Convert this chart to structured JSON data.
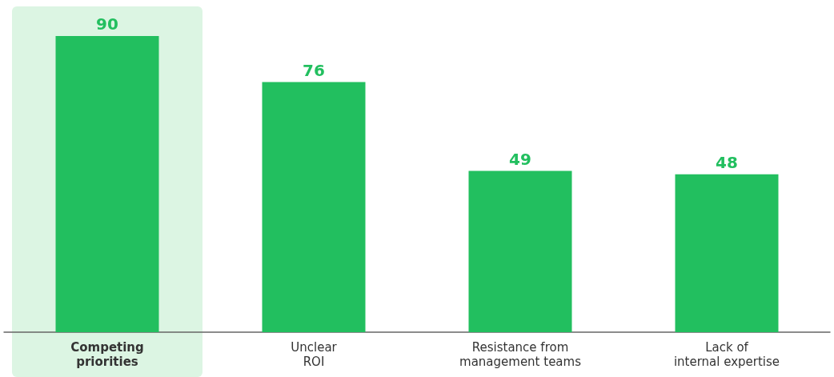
{
  "chart_data": {
    "type": "bar",
    "categories": [
      "Competing\npriorities",
      "Unclear\nROI",
      "Resistance from\nmanagement teams",
      "Lack of\ninternal expertise"
    ],
    "values": [
      90,
      76,
      49,
      48
    ],
    "color": "#22bf5f",
    "data_labels": true,
    "bands": [
      {
        "axis": "x",
        "from": "Competing\npriorities",
        "to": "Competing\npriorities",
        "color": "#dcf5e3"
      }
    ]
  }
}
